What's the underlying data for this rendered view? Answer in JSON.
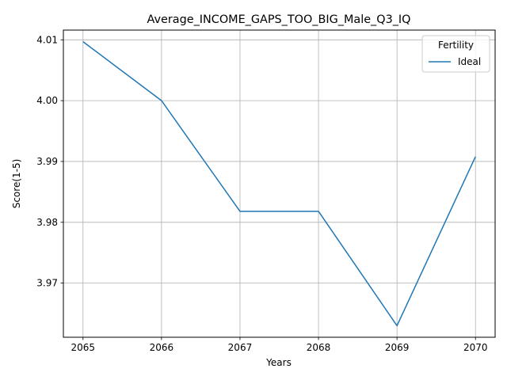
{
  "chart_data": {
    "type": "line",
    "title": "Average_INCOME_GAPS_TOO_BIG_Male_Q3_IQ",
    "xlabel": "Years",
    "ylabel": "Score(1-5)",
    "x": [
      2065,
      2066,
      2067,
      2068,
      2069,
      2070
    ],
    "xticks": [
      "2065",
      "2066",
      "2067",
      "2068",
      "2069",
      "2070"
    ],
    "yticks": [
      "3.97",
      "3.98",
      "3.99",
      "4.00",
      "4.01"
    ],
    "ytick_values": [
      3.97,
      3.98,
      3.99,
      4.0,
      4.01
    ],
    "xlim": [
      2064.75,
      2070.25
    ],
    "ylim": [
      3.9611,
      4.0116
    ],
    "grid": true,
    "legend": {
      "title": "Fertility",
      "placement": "top-right"
    },
    "series": [
      {
        "name": "Ideal",
        "color": "#1f77b4",
        "values": [
          4.0097,
          4.0,
          3.9818,
          3.9818,
          3.963,
          3.9908
        ]
      }
    ]
  }
}
